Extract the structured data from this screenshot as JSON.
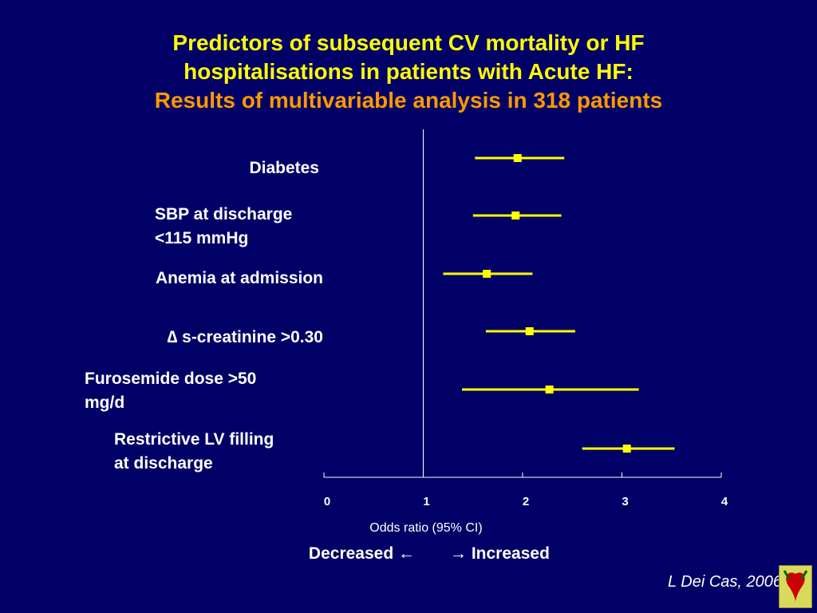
{
  "title": {
    "line1": "Predictors of subsequent CV mortality or HF",
    "line2": "hospitalisations in patients with Acute HF:",
    "line3": "Results of multivariable analysis in 318 patients"
  },
  "labels": [
    {
      "line1": "Diabetes",
      "line2": ""
    },
    {
      "line1": "SBP at discharge",
      "line2": "<115 mmHg"
    },
    {
      "line1": "Anemia at admission",
      "line2": ""
    },
    {
      "line1": "∆ s-creatinine >0.30",
      "line2": ""
    },
    {
      "line1": "Furosemide dose >50",
      "line2": "mg/d"
    },
    {
      "line1": "Restrictive LV filling",
      "line2": "at discharge"
    }
  ],
  "chart_data": {
    "type": "forest",
    "xlabel": "Odds ratio (95% CI)",
    "xlim": [
      0,
      4
    ],
    "xticks": [
      "0",
      "1",
      "2",
      "3",
      "4"
    ],
    "reference_line": 1,
    "rows": [
      {
        "label": "Diabetes",
        "estimate": 1.95,
        "lower": 1.52,
        "upper": 2.42
      },
      {
        "label": "SBP at discharge <115 mmHg",
        "estimate": 1.93,
        "lower": 1.5,
        "upper": 2.39
      },
      {
        "label": "Anemia at admission",
        "estimate": 1.64,
        "lower": 1.2,
        "upper": 2.1
      },
      {
        "label": "∆ s-creatinine >0.30",
        "estimate": 2.07,
        "lower": 1.63,
        "upper": 2.53
      },
      {
        "label": "Furosemide dose >50 mg/d",
        "estimate": 2.27,
        "lower": 1.39,
        "upper": 3.17
      },
      {
        "label": "Restrictive LV filling at discharge",
        "estimate": 3.05,
        "lower": 2.6,
        "upper": 3.53
      }
    ],
    "colors": {
      "line": "#ffff00",
      "axis": "#ffffff",
      "background": "#000066"
    }
  },
  "direction": {
    "decreased": "Decreased ←",
    "increased": "→ Increased"
  },
  "footnote": "L Dei Cas, 2006"
}
